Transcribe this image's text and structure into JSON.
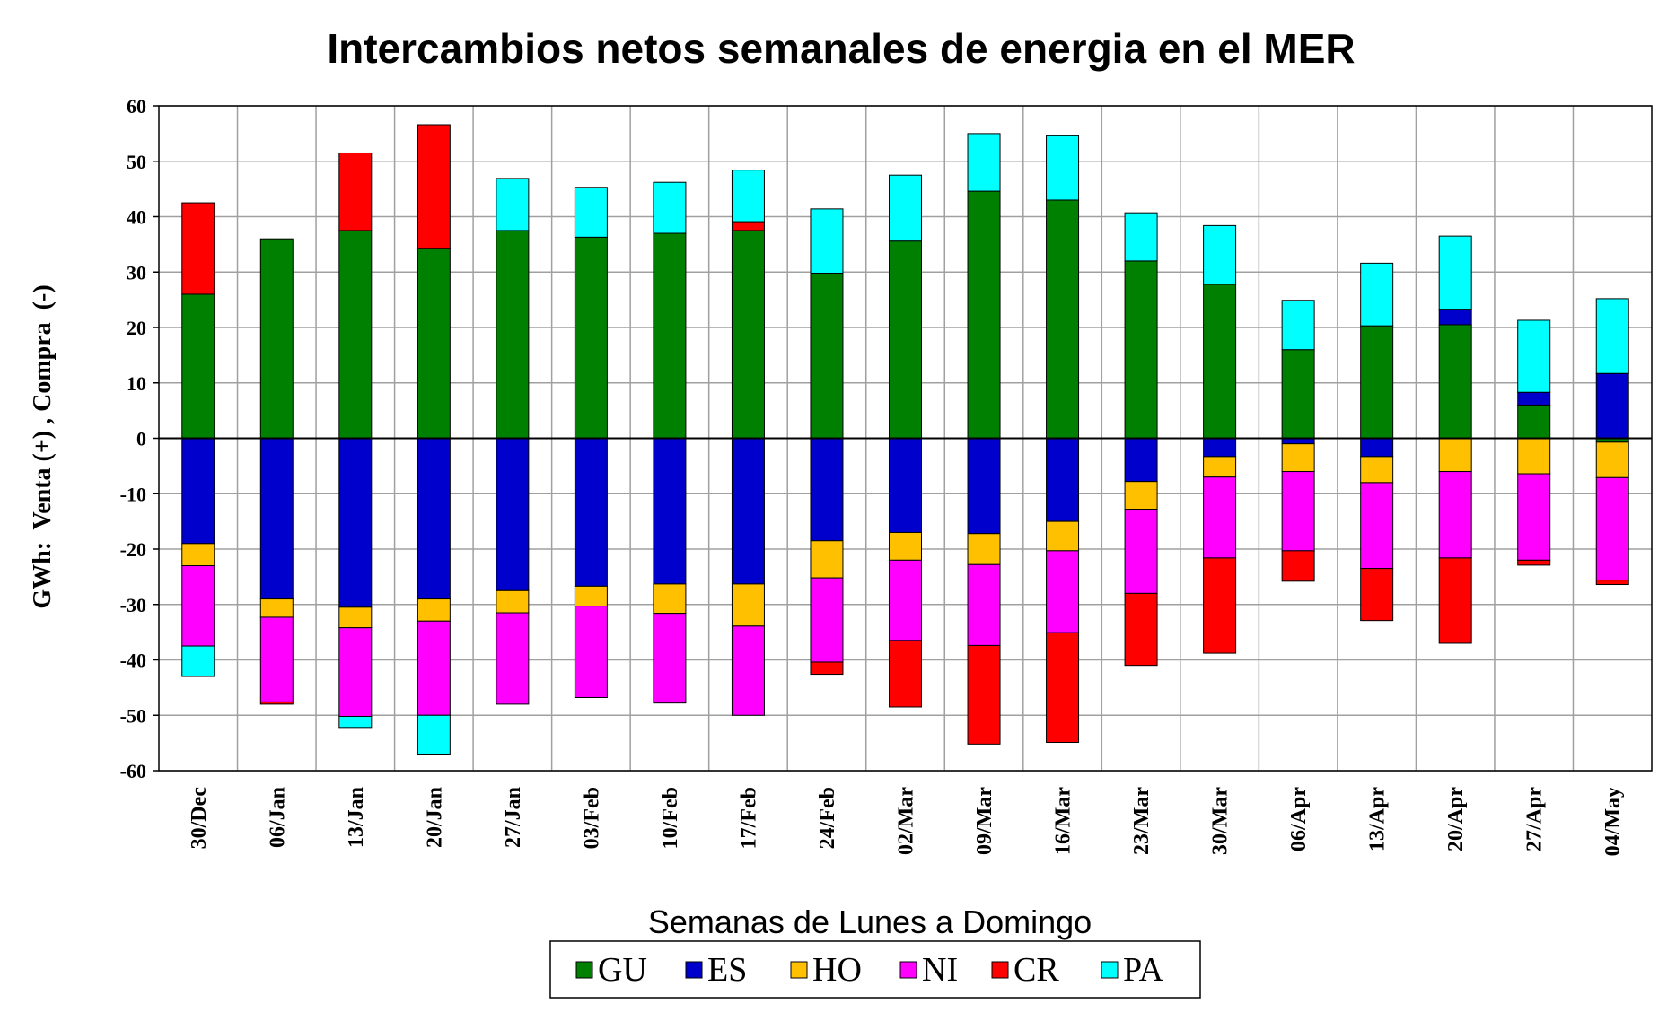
{
  "chart_data": {
    "type": "bar",
    "stacked": true,
    "title": "Intercambios netos semanales de energia en el MER",
    "xlabel": "Semanas de Lunes a Domingo",
    "ylabel": "GWh:  Venta (+) , Compra  (-)",
    "ylim": [
      -60,
      60
    ],
    "yticks": [
      60,
      50,
      40,
      30,
      20,
      10,
      0,
      -10,
      -20,
      -30,
      -40,
      -50,
      -60
    ],
    "grid": true,
    "legend_position": "bottom",
    "categories": [
      "30/Dec",
      "06/Jan",
      "13/Jan",
      "20/Jan",
      "27/Jan",
      "03/Feb",
      "10/Feb",
      "17/Feb",
      "24/Feb",
      "02/Mar",
      "09/Mar",
      "16/Mar",
      "23/Mar",
      "30/Mar",
      "06/Apr",
      "13/Apr",
      "20/Apr",
      "27/Apr",
      "04/May"
    ],
    "series": [
      {
        "name": "GU",
        "color": "#008000",
        "values": [
          26,
          36,
          37.5,
          34.3,
          37.5,
          36.3,
          37,
          37.5,
          29.8,
          35.6,
          44.6,
          43,
          32,
          27.8,
          16,
          20.3,
          20.5,
          6,
          -0.7
        ]
      },
      {
        "name": "ES",
        "color": "#0000CC",
        "values": [
          -19,
          -29,
          -30.5,
          -29,
          -27.5,
          -26.7,
          -26.3,
          -26.3,
          -18.5,
          -17,
          -17.2,
          -15,
          -7.8,
          -3.3,
          -1,
          -3.3,
          2.8,
          2.3,
          11.7
        ]
      },
      {
        "name": "HO",
        "color": "#FFC000",
        "values": [
          -4,
          -3.3,
          -3.7,
          -4,
          -4,
          -3.6,
          -5.3,
          -7.6,
          -6.7,
          -5,
          -5.6,
          -5.3,
          -5,
          -3.7,
          -5,
          -4.7,
          -6,
          -6.4,
          -6.4
        ]
      },
      {
        "name": "NI",
        "color": "#FF00FF",
        "values": [
          -14.5,
          -15.3,
          -16,
          -17,
          -16.5,
          -16.5,
          -16.2,
          -16.1,
          -15.2,
          -14.5,
          -14.6,
          -14.8,
          -15.2,
          -14.6,
          -14.3,
          -15.5,
          -15.6,
          -15.6,
          -18.5
        ]
      },
      {
        "name": "CR",
        "color": "#FF0000",
        "values": [
          16.5,
          -0.4,
          14,
          22.3,
          0,
          0,
          0,
          1.6,
          -2.2,
          -12,
          -17.8,
          -19.8,
          -13,
          -17.2,
          -5.5,
          -9.4,
          -15.4,
          -0.9,
          -0.8
        ]
      },
      {
        "name": "PA",
        "color": "#00FFFF",
        "values": [
          -5.5,
          0,
          -2,
          -7,
          9.4,
          9,
          9.2,
          9.3,
          11.6,
          11.9,
          10.4,
          11.6,
          8.7,
          10.6,
          8.9,
          11.3,
          13.2,
          13,
          13.5
        ]
      }
    ]
  }
}
